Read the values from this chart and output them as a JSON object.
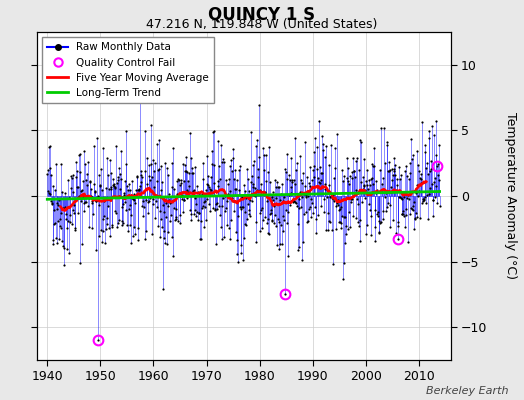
{
  "title": "QUINCY 1 S",
  "subtitle": "47.216 N, 119.848 W (United States)",
  "ylabel": "Temperature Anomaly (°C)",
  "footer": "Berkeley Earth",
  "xlim": [
    1938,
    2016
  ],
  "ylim": [
    -12.5,
    12.5
  ],
  "yticks": [
    -10,
    -5,
    0,
    5,
    10
  ],
  "xticks": [
    1940,
    1950,
    1960,
    1970,
    1980,
    1990,
    2000,
    2010
  ],
  "start_year": 1940,
  "end_year": 2014,
  "raw_color": "#0000FF",
  "dot_color": "#000000",
  "moving_avg_color": "#FF0000",
  "trend_color": "#00CC00",
  "qc_color": "#FF00FF",
  "bg_color": "#E8E8E8",
  "plot_bg_color": "#FFFFFF",
  "trend_intercept": -0.25,
  "trend_slope": 0.008,
  "qc_fail_years": [
    1949.5,
    1984.75,
    2006.0,
    2013.5
  ],
  "qc_fail_values": [
    -11.0,
    -7.5,
    -3.3,
    2.3
  ],
  "random_seed": 42,
  "noise_std": 2.0
}
